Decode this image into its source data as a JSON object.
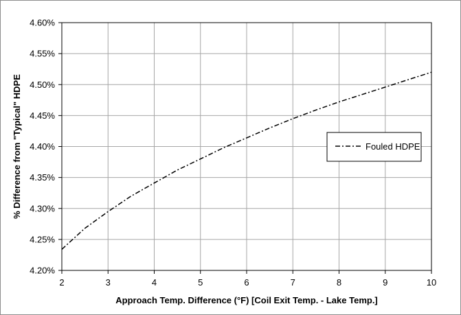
{
  "chart_data": {
    "type": "line",
    "title": "",
    "xlabel": "Approach Temp. Difference (°F) [Coil Exit Temp. - Lake Temp.]",
    "ylabel": "% Difference from \"Typical\" HDPE",
    "xlim": [
      2,
      10
    ],
    "ylim": [
      4.2,
      4.6
    ],
    "x_ticks": [
      "2",
      "3",
      "4",
      "5",
      "6",
      "7",
      "8",
      "9",
      "10"
    ],
    "y_ticks": [
      "4.20%",
      "4.25%",
      "4.30%",
      "4.35%",
      "4.40%",
      "4.45%",
      "4.50%",
      "4.55%",
      "4.60%"
    ],
    "grid": true,
    "legend_position": "right",
    "series": [
      {
        "name": "Fouled HDPE",
        "line_style": "dash-dot",
        "color": "#000000",
        "x": [
          2,
          2.5,
          3,
          3.5,
          4,
          4.5,
          5,
          5.5,
          6,
          6.5,
          7,
          7.5,
          8,
          8.5,
          9,
          9.5,
          10
        ],
        "values": [
          4.234,
          4.268,
          4.295,
          4.32,
          4.341,
          4.362,
          4.38,
          4.398,
          4.414,
          4.43,
          4.445,
          4.459,
          4.472,
          4.484,
          4.496,
          4.508,
          4.52
        ]
      }
    ]
  }
}
